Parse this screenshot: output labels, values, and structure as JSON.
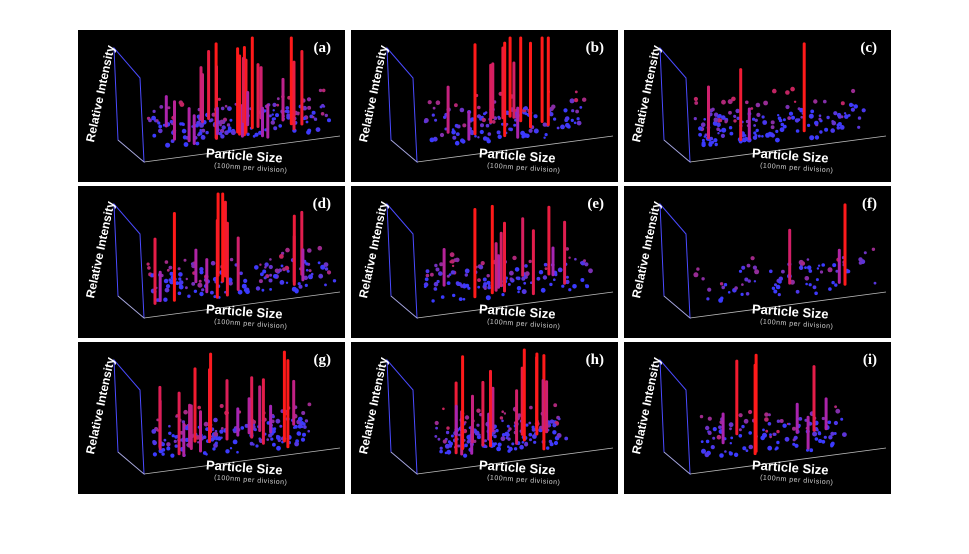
{
  "figure": {
    "panels": [
      {
        "label": "(a)",
        "ylabel": "Relative Intensity",
        "xlabel": "Particle Size",
        "xunit": "(100nm per division)",
        "seed": 11,
        "density": 170,
        "tall": 26,
        "spread": 1.0
      },
      {
        "label": "(b)",
        "ylabel": "Relative Intensity",
        "xlabel": "Particle Size",
        "xunit": "(100nm per division)",
        "seed": 23,
        "density": 130,
        "tall": 14,
        "spread": 0.8
      },
      {
        "label": "(c)",
        "ylabel": "Relative Intensity",
        "xlabel": "Particle Size",
        "xunit": "(100nm per division)",
        "seed": 37,
        "density": 160,
        "tall": 4,
        "spread": 0.9
      },
      {
        "label": "(d)",
        "ylabel": "Relative Intensity",
        "xlabel": "Particle Size",
        "xunit": "(100nm per division)",
        "seed": 41,
        "density": 150,
        "tall": 16,
        "spread": 1.1
      },
      {
        "label": "(e)",
        "ylabel": "Relative Intensity",
        "xlabel": "Particle Size",
        "xunit": "(100nm per division)",
        "seed": 53,
        "density": 120,
        "tall": 12,
        "spread": 1.0
      },
      {
        "label": "(f)",
        "ylabel": "Relative Intensity",
        "xlabel": "Particle Size",
        "xunit": "(100nm per division)",
        "seed": 67,
        "density": 90,
        "tall": 3,
        "spread": 1.0
      },
      {
        "label": "(g)",
        "ylabel": "Relative Intensity",
        "xlabel": "Particle Size",
        "xunit": "(100nm per division)",
        "seed": 71,
        "density": 170,
        "tall": 20,
        "spread": 0.9
      },
      {
        "label": "(h)",
        "ylabel": "Relative Intensity",
        "xlabel": "Particle Size",
        "xunit": "(100nm per division)",
        "seed": 83,
        "density": 160,
        "tall": 18,
        "spread": 0.6
      },
      {
        "label": "(i)",
        "ylabel": "Relative Intensity",
        "xlabel": "Particle Size",
        "xunit": "(100nm per division)",
        "seed": 97,
        "density": 110,
        "tall": 8,
        "spread": 0.7
      }
    ],
    "colors": {
      "background": "#000000",
      "low": "#3a3aff",
      "high": "#ff1a1a",
      "axes": "#4a4aff"
    }
  },
  "chart_data": {
    "type": "scatter",
    "title": "",
    "xlabel": "Particle Size",
    "ylabel": "Relative Intensity",
    "x_unit": "(100nm per division)",
    "panels": [
      "(a)",
      "(b)",
      "(c)",
      "(d)",
      "(e)",
      "(f)",
      "(g)",
      "(h)",
      "(i)"
    ],
    "note": ""
  }
}
